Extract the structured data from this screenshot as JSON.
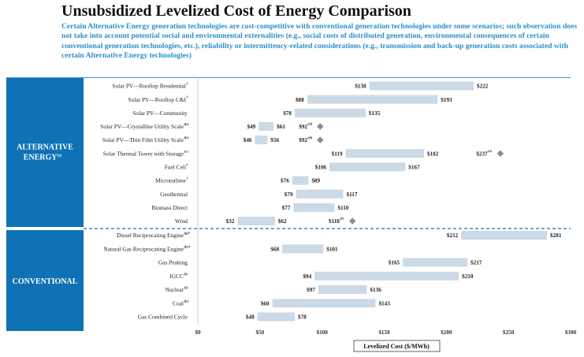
{
  "title": "Unsubsidized Levelized Cost of Energy Comparison",
  "subtitle": "Certain Alternative Energy generation technologies are cost-competitive with conventional generation technologies under some scenarios; such observation does not take into account potential social and environmental externalities (e.g., social costs of distributed generation, environmental consequences of certain conventional generation technologies, etc.), reliability or intermittency-related considerations (e.g., transmission and back-up generation costs associated with certain Alternative Energy technologies)",
  "chart_data": {
    "type": "bar",
    "orientation": "horizontal",
    "subtype": "floating-range",
    "title": "Unsubsidized Levelized Cost of Energy Comparison",
    "xlabel": "Levelized Cost ($/MWh)",
    "xlim": [
      0,
      300
    ],
    "xticks": [
      0,
      50,
      100,
      150,
      200,
      250,
      300
    ],
    "xtick_labels": [
      "$0",
      "$50",
      "$100",
      "$150",
      "$200",
      "$250",
      "$300"
    ],
    "bar_color": "#ccd9e6",
    "marker_color": "#8c8c8c",
    "groups": [
      {
        "name": "ALTERNATIVE ENERGY",
        "name_sup": "(a)",
        "color": "#0e72b5",
        "items": [
          {
            "label": "Solar PV—Rooftop Residential",
            "sup": "†",
            "low": 138,
            "high": 222,
            "low_label": "$138",
            "high_label": "$222"
          },
          {
            "label": "Solar PV—Rooftop C&I",
            "sup": "†",
            "low": 88,
            "high": 193,
            "low_label": "$88",
            "high_label": "$193"
          },
          {
            "label": "Solar PV—Community",
            "sup": "",
            "low": 78,
            "high": 135,
            "low_label": "$78",
            "high_label": "$135"
          },
          {
            "label": "Solar PV—Crystalline Utility Scale",
            "sup": "(b)",
            "low": 49,
            "high": 61,
            "low_label": "$49",
            "high_label": "$61",
            "marker": 92,
            "marker_label": "$92",
            "marker_sup": "(d)"
          },
          {
            "label": "Solar PV—Thin Film Utility Scale",
            "sup": "(b)",
            "low": 46,
            "high": 56,
            "low_label": "$46",
            "high_label": "$56",
            "marker": 92,
            "marker_label": "$92",
            "marker_sup": "(d)"
          },
          {
            "label": "Solar Thermal Tower with Storage",
            "sup": "(c)",
            "low": 119,
            "high": 182,
            "low_label": "$119",
            "high_label": "$182",
            "marker": 237,
            "marker_label": "$237",
            "marker_sup": "(e)"
          },
          {
            "label": "Fuel Cell",
            "sup": "†",
            "low": 106,
            "high": 167,
            "low_label": "$106",
            "high_label": "$167"
          },
          {
            "label": "Microturbine",
            "sup": "†",
            "low": 76,
            "high": 89,
            "low_label": "$76",
            "high_label": "$89"
          },
          {
            "label": "Geothermal",
            "sup": "",
            "low": 79,
            "high": 117,
            "low_label": "$79",
            "high_label": "$117"
          },
          {
            "label": "Biomass Direct",
            "sup": "",
            "low": 77,
            "high": 110,
            "low_label": "$77",
            "high_label": "$110"
          },
          {
            "label": "Wind",
            "sup": "",
            "low": 32,
            "high": 62,
            "low_label": "$32",
            "high_label": "$62",
            "marker": 118,
            "marker_label": "$118",
            "marker_sup": "(f)"
          }
        ]
      },
      {
        "name": "CONVENTIONAL",
        "name_sup": "",
        "color": "#0e72b5",
        "items": [
          {
            "label": "Diesel Reciprocating Engine",
            "sup": "(g)†",
            "low": 212,
            "high": 281,
            "low_label": "$212",
            "high_label": "$281"
          },
          {
            "label": "Natural Gas Reciprocating Engine",
            "sup": "(h)†",
            "low": 68,
            "high": 101,
            "low_label": "$68",
            "high_label": "$101"
          },
          {
            "label": "Gas Peaking",
            "sup": "",
            "low": 165,
            "high": 217,
            "low_label": "$165",
            "high_label": "$217"
          },
          {
            "label": "IGCC",
            "sup": "(i)",
            "low": 94,
            "high": 210,
            "low_label": "$94",
            "high_label": "$210"
          },
          {
            "label": "Nuclear",
            "sup": "(j)",
            "low": 97,
            "high": 136,
            "low_label": "$97",
            "high_label": "$136"
          },
          {
            "label": "Coal",
            "sup": "(k)",
            "low": 60,
            "high": 143,
            "low_label": "$60",
            "high_label": "$143"
          },
          {
            "label": "Gas Combined Cycle",
            "sup": "",
            "low": 48,
            "high": 78,
            "low_label": "$48",
            "high_label": "$78"
          }
        ]
      }
    ]
  }
}
